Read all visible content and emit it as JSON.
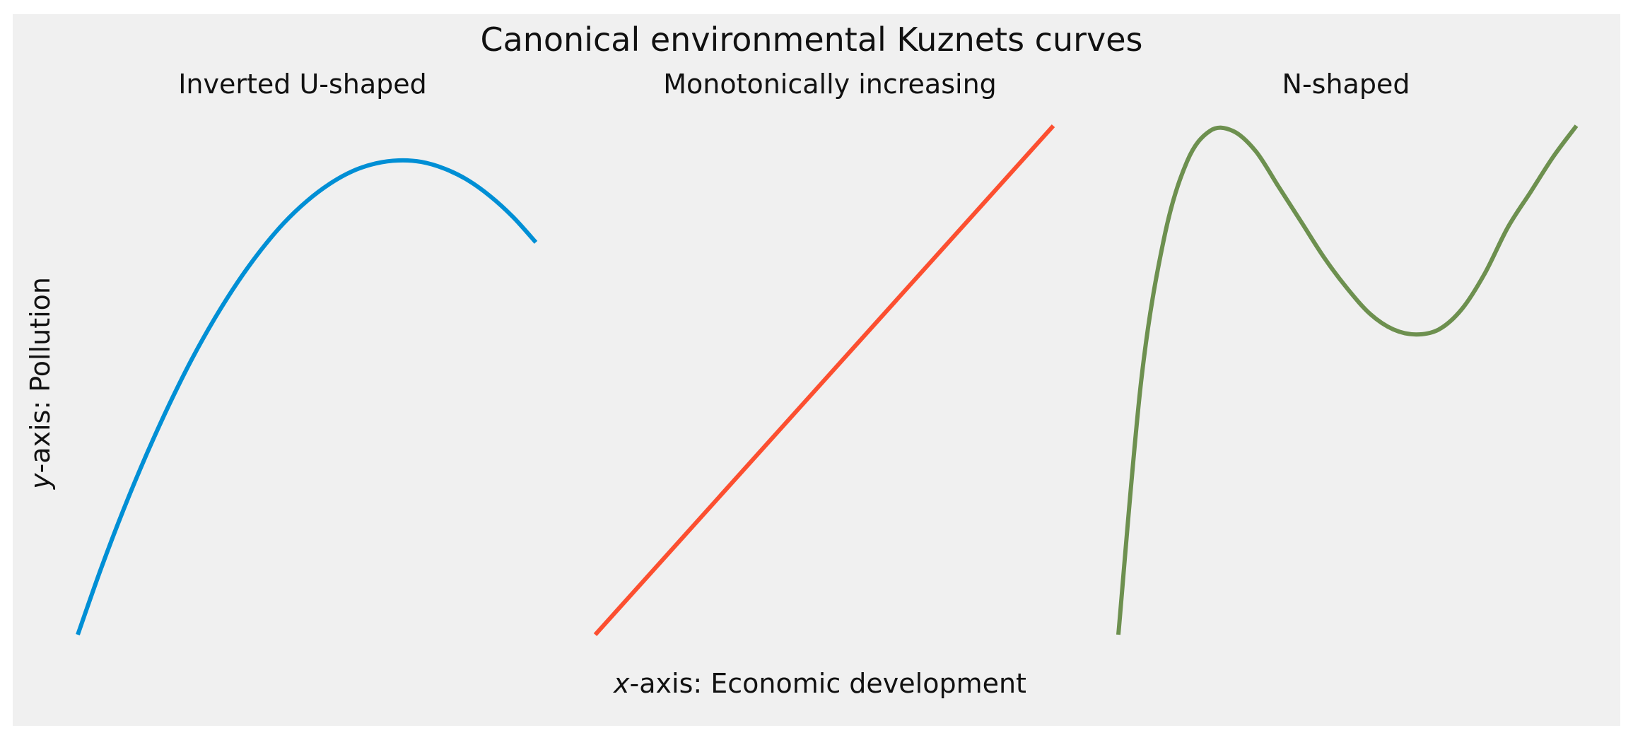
{
  "figure": {
    "title": "Canonical environmental Kuznets curves",
    "xlabel_prefix": "x",
    "xlabel_rest": "-axis: Economic development",
    "ylabel_prefix": "y",
    "ylabel_rest": "-axis: Pollution",
    "background": "#f0f0f0"
  },
  "chart_data": [
    {
      "type": "line",
      "title": "Inverted U-shaped",
      "color": "#008fd5",
      "curve": "inverted-u",
      "x": [
        0,
        0.05,
        0.1,
        0.15,
        0.2,
        0.25,
        0.3,
        0.35,
        0.4,
        0.45,
        0.5,
        0.55,
        0.6,
        0.65,
        0.7,
        0.75,
        0.8,
        0.85,
        0.9,
        0.95,
        1.0
      ],
      "y": [
        0,
        0.128,
        0.246,
        0.354,
        0.453,
        0.543,
        0.623,
        0.694,
        0.756,
        0.809,
        0.852,
        0.886,
        0.911,
        0.926,
        0.932,
        0.929,
        0.916,
        0.894,
        0.862,
        0.821,
        0.771
      ],
      "xlim": [
        0,
        1
      ],
      "ylim": [
        0,
        1
      ]
    },
    {
      "type": "line",
      "title": "Monotonically increasing",
      "color": "#fc4f30",
      "curve": "linear",
      "x": [
        0,
        1
      ],
      "y": [
        0,
        1
      ],
      "xlim": [
        0,
        1
      ],
      "ylim": [
        0,
        1
      ]
    },
    {
      "type": "line",
      "title": "N-shaped",
      "color": "#6d904f",
      "curve": "n-shaped",
      "x": [
        0,
        0.05,
        0.1,
        0.15,
        0.2,
        0.25,
        0.3,
        0.35,
        0.4,
        0.45,
        0.5,
        0.55,
        0.6,
        0.65,
        0.7,
        0.75,
        0.8,
        0.85,
        0.9,
        0.95,
        1.0
      ],
      "y": [
        0,
        0.5,
        0.78,
        0.93,
        0.99,
        0.99,
        0.95,
        0.88,
        0.81,
        0.74,
        0.68,
        0.63,
        0.6,
        0.59,
        0.6,
        0.64,
        0.71,
        0.8,
        0.87,
        0.94,
        1.0
      ],
      "xlim": [
        0,
        1
      ],
      "ylim": [
        0,
        1
      ]
    }
  ]
}
